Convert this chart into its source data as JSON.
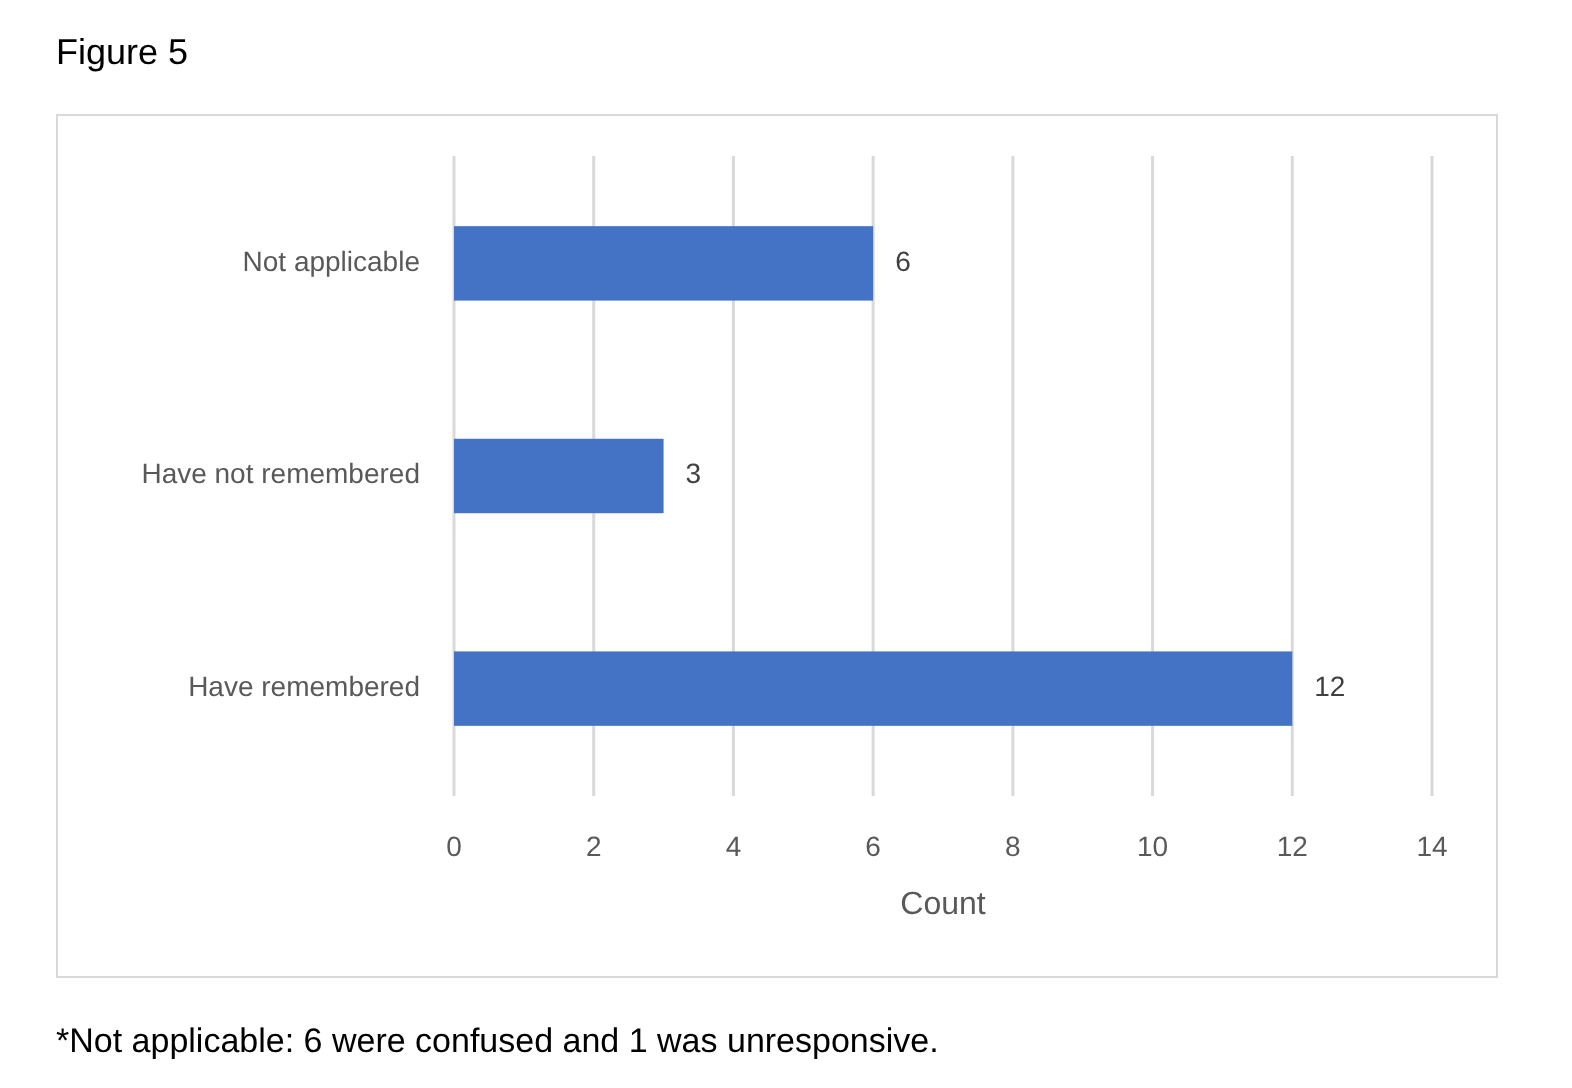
{
  "chart_data": {
    "type": "bar",
    "orientation": "horizontal",
    "title": "Figure 5",
    "xlabel": "Count",
    "categories": [
      "Not applicable",
      "Have not remembered",
      "Have remembered"
    ],
    "values": [
      6,
      3,
      12
    ],
    "color": "#4472c4",
    "xlim": [
      0,
      14
    ],
    "xticks": [
      0,
      2,
      4,
      6,
      8,
      10,
      12,
      14
    ],
    "grid": "x",
    "data_labels": true,
    "annotations": [
      "*Not applicable: 6 were confused and 1 was unresponsive."
    ]
  }
}
